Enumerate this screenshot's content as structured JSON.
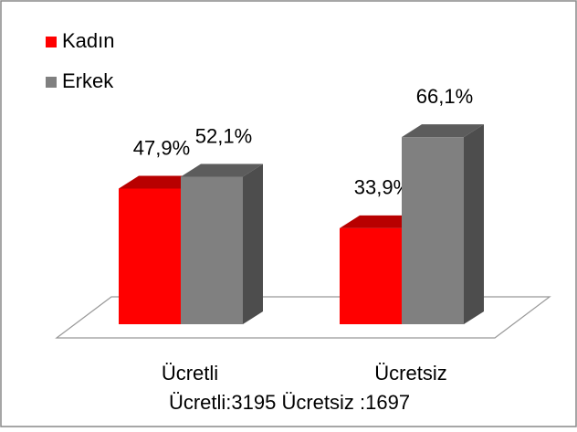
{
  "chart_data": {
    "type": "bar3d",
    "categories": [
      "Ücretli",
      "Ücretsiz"
    ],
    "series": [
      {
        "name": "Kadın",
        "color": "#ff0000",
        "values": [
          47.9,
          33.9
        ],
        "value_labels": [
          "47,9%",
          "33,9%"
        ]
      },
      {
        "name": "Erkek",
        "color": "#808080",
        "values": [
          52.1,
          66.1
        ],
        "value_labels": [
          "52,1%",
          "66,1%"
        ]
      }
    ],
    "annotation": "Ücretli:3195 Ücretsiz :1697",
    "legend": "top-left"
  }
}
